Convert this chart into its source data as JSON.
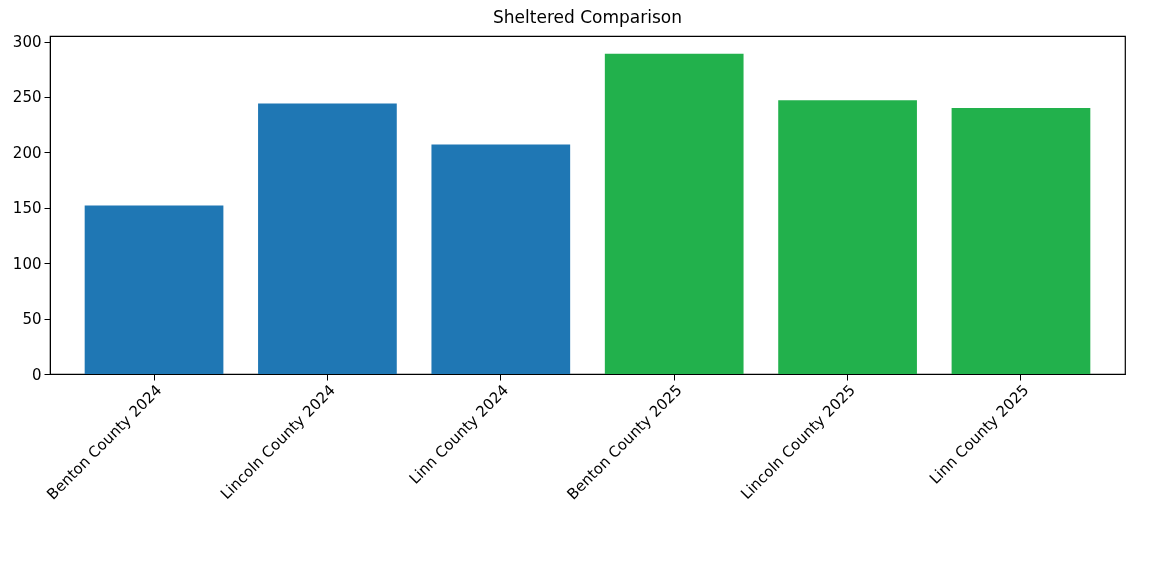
{
  "chart_data": {
    "type": "bar",
    "title": "Sheltered Comparison",
    "categories": [
      "Benton County 2024",
      "Lincoln County 2024",
      "Linn County 2024",
      "Benton County 2025",
      "Lincoln County 2025",
      "Linn County 2025"
    ],
    "values": [
      152,
      244,
      207,
      289,
      247,
      240
    ],
    "colors": [
      "#1f77b4",
      "#1f77b4",
      "#1f77b4",
      "#22b14c",
      "#22b14c",
      "#22b14c"
    ],
    "ylim": [
      0,
      305
    ],
    "yticks": [
      0,
      50,
      100,
      150,
      200,
      250,
      300
    ],
    "grid": false,
    "legend": false
  }
}
